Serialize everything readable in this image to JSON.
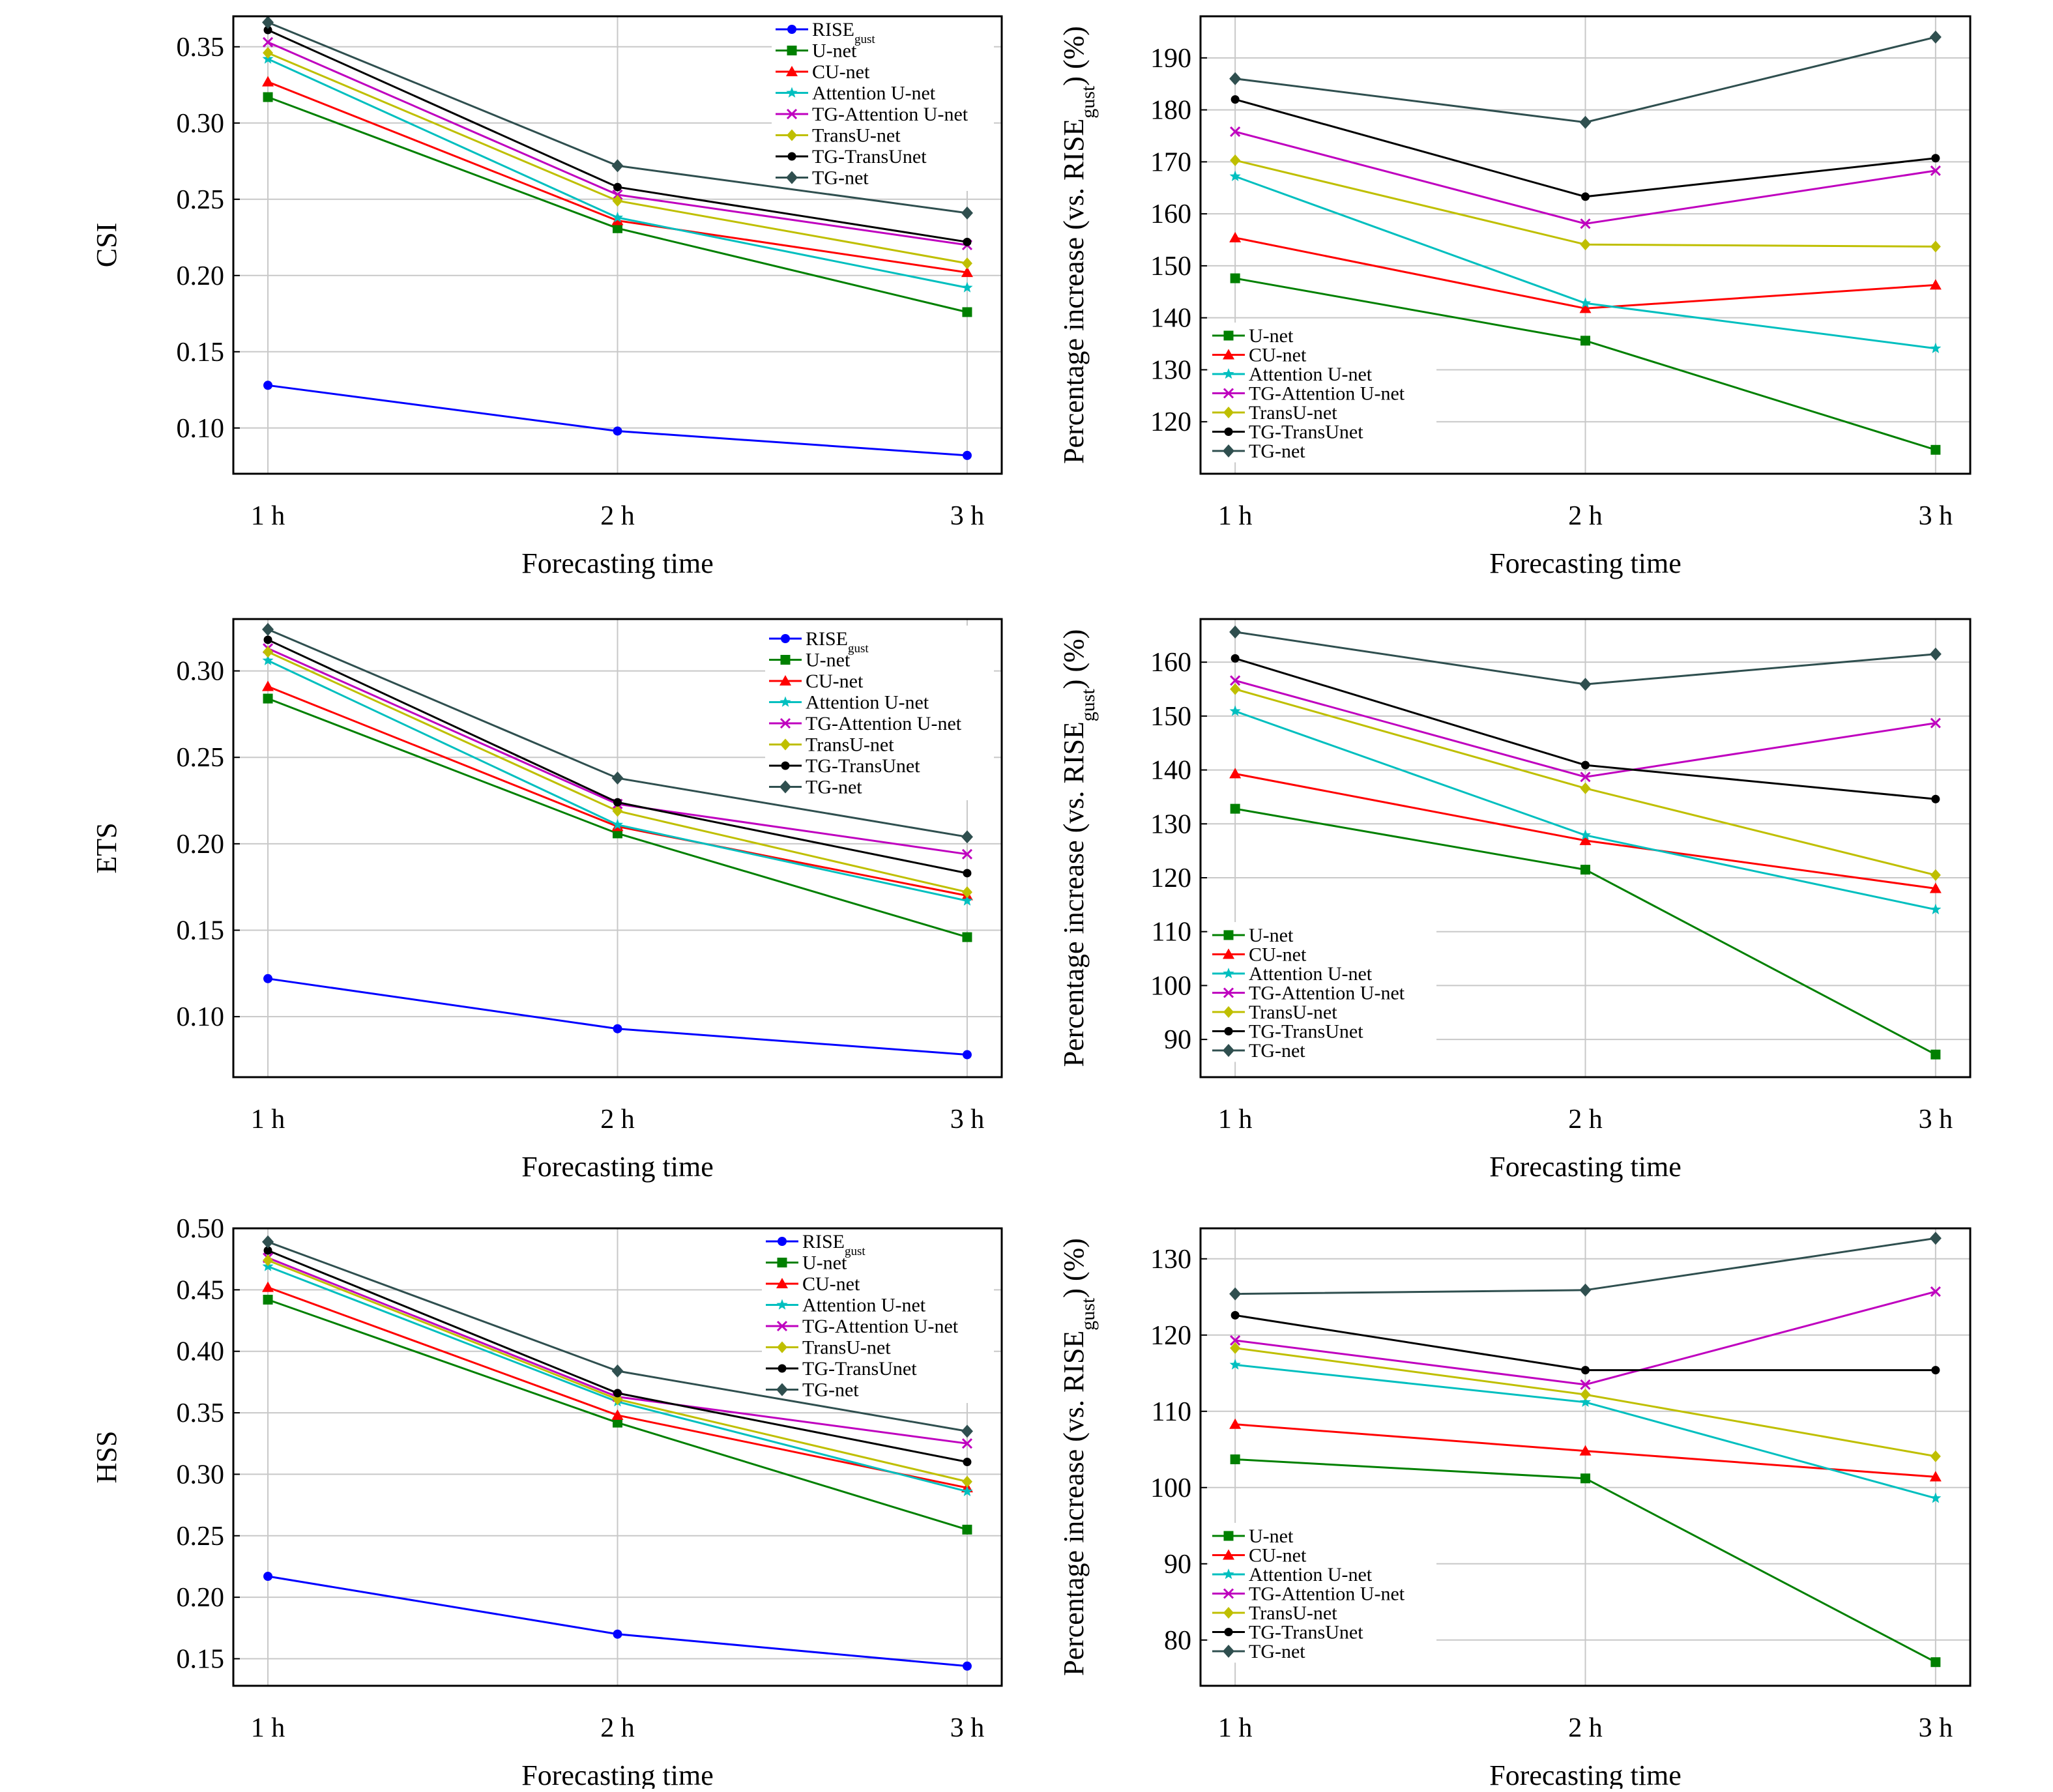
{
  "figure_title": "",
  "colors": {
    "RISE": "#0000ff",
    "U-net": "#008000",
    "CU-net": "#ff0000",
    "Attention U-net": "#00bfbf",
    "TG-Attention U-net": "#bf00bf",
    "TransU-net": "#bfbf00",
    "TG-TransUnet": "#000000",
    "TG-net": "#2f4f4f"
  },
  "chart_data": [
    {
      "id": "csi",
      "type": "line",
      "xlabel": "Forecasting time",
      "ylabel": "CSI",
      "categories": [
        "1 h",
        "2 h",
        "3 h"
      ],
      "ylim": [
        0.07,
        0.37
      ],
      "yticks": [
        "0.10",
        "0.15",
        "0.20",
        "0.25",
        "0.30",
        "0.35"
      ],
      "grid": true,
      "legend": "top-right",
      "series": [
        {
          "name": "RISE",
          "sub": "gust",
          "key": "RISE",
          "marker": "circle",
          "values": [
            0.128,
            0.098,
            0.082
          ]
        },
        {
          "name": "U-net",
          "key": "U-net",
          "marker": "square",
          "values": [
            0.317,
            0.231,
            0.176
          ]
        },
        {
          "name": "CU-net",
          "key": "CU-net",
          "marker": "triangle",
          "values": [
            0.327,
            0.236,
            0.202
          ]
        },
        {
          "name": "Attention U-net",
          "key": "Attention U-net",
          "marker": "star",
          "values": [
            0.342,
            0.238,
            0.192
          ]
        },
        {
          "name": "TG-Attention U-net",
          "key": "TG-Attention U-net",
          "marker": "x",
          "values": [
            0.353,
            0.253,
            0.22
          ]
        },
        {
          "name": "TransU-net",
          "key": "TransU-net",
          "marker": "diamond",
          "values": [
            0.346,
            0.249,
            0.208
          ]
        },
        {
          "name": "TG-TransUnet",
          "key": "TG-TransUnet",
          "marker": "pentagon",
          "values": [
            0.361,
            0.258,
            0.222
          ]
        },
        {
          "name": "TG-net",
          "key": "TG-net",
          "marker": "bigdiamond",
          "values": [
            0.366,
            0.272,
            0.241
          ]
        }
      ]
    },
    {
      "id": "csi-pct",
      "type": "line",
      "xlabel": "Forecasting time",
      "ylabel": "Percentage increase (vs. RISE",
      "ylabel_sub": "gust",
      "ylabel_end": ") (%)",
      "categories": [
        "1 h",
        "2 h",
        "3 h"
      ],
      "ylim": [
        110,
        198
      ],
      "yticks": [
        "120",
        "130",
        "140",
        "150",
        "160",
        "170",
        "180",
        "190"
      ],
      "grid": true,
      "legend": "bottom-left",
      "series": [
        {
          "name": "U-net",
          "key": "U-net",
          "marker": "square",
          "values": [
            147.6,
            135.6,
            114.6
          ]
        },
        {
          "name": "CU-net",
          "key": "CU-net",
          "marker": "triangle",
          "values": [
            155.4,
            141.8,
            146.3
          ]
        },
        {
          "name": "Attention U-net",
          "key": "Attention U-net",
          "marker": "star",
          "values": [
            167.2,
            142.8,
            134.1
          ]
        },
        {
          "name": "TG-Attention U-net",
          "key": "TG-Attention U-net",
          "marker": "x",
          "values": [
            175.8,
            158.1,
            168.3
          ]
        },
        {
          "name": "TransU-net",
          "key": "TransU-net",
          "marker": "diamond",
          "values": [
            170.3,
            154.1,
            153.7
          ]
        },
        {
          "name": "TG-TransUnet",
          "key": "TG-TransUnet",
          "marker": "pentagon",
          "values": [
            182.0,
            163.3,
            170.7
          ]
        },
        {
          "name": "TG-net",
          "key": "TG-net",
          "marker": "bigdiamond",
          "values": [
            186.0,
            177.6,
            194.0
          ]
        }
      ]
    },
    {
      "id": "ets",
      "type": "line",
      "xlabel": "Forecasting time",
      "ylabel": "ETS",
      "categories": [
        "1 h",
        "2 h",
        "3 h"
      ],
      "ylim": [
        0.065,
        0.33
      ],
      "yticks": [
        "0.10",
        "0.15",
        "0.20",
        "0.25",
        "0.30"
      ],
      "grid": true,
      "legend": "top-right",
      "series": [
        {
          "name": "RISE",
          "sub": "gust",
          "key": "RISE",
          "marker": "circle",
          "values": [
            0.122,
            0.093,
            0.078
          ]
        },
        {
          "name": "U-net",
          "key": "U-net",
          "marker": "square",
          "values": [
            0.284,
            0.206,
            0.146
          ]
        },
        {
          "name": "CU-net",
          "key": "CU-net",
          "marker": "triangle",
          "values": [
            0.291,
            0.21,
            0.17
          ]
        },
        {
          "name": "Attention U-net",
          "key": "Attention U-net",
          "marker": "star",
          "values": [
            0.306,
            0.211,
            0.167
          ]
        },
        {
          "name": "TG-Attention U-net",
          "key": "TG-Attention U-net",
          "marker": "x",
          "values": [
            0.313,
            0.223,
            0.194
          ]
        },
        {
          "name": "TransU-net",
          "key": "TransU-net",
          "marker": "diamond",
          "values": [
            0.311,
            0.219,
            0.172
          ]
        },
        {
          "name": "TG-TransUnet",
          "key": "TG-TransUnet",
          "marker": "pentagon",
          "values": [
            0.318,
            0.224,
            0.183
          ]
        },
        {
          "name": "TG-net",
          "key": "TG-net",
          "marker": "bigdiamond",
          "values": [
            0.324,
            0.238,
            0.204
          ]
        }
      ]
    },
    {
      "id": "ets-pct",
      "type": "line",
      "xlabel": "Forecasting time",
      "ylabel": "Percentage increase (vs. RISE",
      "ylabel_sub": "gust",
      "ylabel_end": ") (%)",
      "categories": [
        "1 h",
        "2 h",
        "3 h"
      ],
      "ylim": [
        83,
        168
      ],
      "yticks": [
        "90",
        "100",
        "110",
        "120",
        "130",
        "140",
        "150",
        "160"
      ],
      "grid": true,
      "legend": "bottom-left",
      "series": [
        {
          "name": "U-net",
          "key": "U-net",
          "marker": "square",
          "values": [
            132.8,
            121.5,
            87.2
          ]
        },
        {
          "name": "CU-net",
          "key": "CU-net",
          "marker": "triangle",
          "values": [
            139.3,
            126.9,
            118.0
          ]
        },
        {
          "name": "Attention U-net",
          "key": "Attention U-net",
          "marker": "star",
          "values": [
            150.9,
            127.9,
            114.1
          ]
        },
        {
          "name": "TG-Attention U-net",
          "key": "TG-Attention U-net",
          "marker": "x",
          "values": [
            156.6,
            138.7,
            148.7
          ]
        },
        {
          "name": "TransU-net",
          "key": "TransU-net",
          "marker": "diamond",
          "values": [
            155.0,
            136.6,
            120.5
          ]
        },
        {
          "name": "TG-TransUnet",
          "key": "TG-TransUnet",
          "marker": "pentagon",
          "values": [
            160.7,
            140.9,
            134.6
          ]
        },
        {
          "name": "TG-net",
          "key": "TG-net",
          "marker": "bigdiamond",
          "values": [
            165.6,
            155.9,
            161.5
          ]
        }
      ]
    },
    {
      "id": "hss",
      "type": "line",
      "xlabel": "Forecasting time",
      "ylabel": "HSS",
      "categories": [
        "1 h",
        "2 h",
        "3 h"
      ],
      "ylim": [
        0.128,
        0.5
      ],
      "yticks": [
        "0.15",
        "0.20",
        "0.25",
        "0.30",
        "0.35",
        "0.40",
        "0.45",
        "0.50"
      ],
      "grid": true,
      "legend": "top-right",
      "series": [
        {
          "name": "RISE",
          "sub": "gust",
          "key": "RISE",
          "marker": "circle",
          "values": [
            0.217,
            0.17,
            0.144
          ]
        },
        {
          "name": "U-net",
          "key": "U-net",
          "marker": "square",
          "values": [
            0.442,
            0.342,
            0.255
          ]
        },
        {
          "name": "CU-net",
          "key": "CU-net",
          "marker": "triangle",
          "values": [
            0.452,
            0.348,
            0.289
          ]
        },
        {
          "name": "Attention U-net",
          "key": "Attention U-net",
          "marker": "star",
          "values": [
            0.469,
            0.359,
            0.286
          ]
        },
        {
          "name": "TG-Attention U-net",
          "key": "TG-Attention U-net",
          "marker": "x",
          "values": [
            0.476,
            0.363,
            0.325
          ]
        },
        {
          "name": "TransU-net",
          "key": "TransU-net",
          "marker": "diamond",
          "values": [
            0.474,
            0.361,
            0.294
          ]
        },
        {
          "name": "TG-TransUnet",
          "key": "TG-TransUnet",
          "marker": "pentagon",
          "values": [
            0.482,
            0.366,
            0.31
          ]
        },
        {
          "name": "TG-net",
          "key": "TG-net",
          "marker": "bigdiamond",
          "values": [
            0.489,
            0.384,
            0.335
          ]
        }
      ]
    },
    {
      "id": "hss-pct",
      "type": "line",
      "xlabel": "Forecasting time",
      "ylabel": "Percentage increase (vs. RISE",
      "ylabel_sub": "gust",
      "ylabel_end": ") (%)",
      "categories": [
        "1 h",
        "2 h",
        "3 h"
      ],
      "ylim": [
        74,
        134
      ],
      "yticks": [
        "80",
        "90",
        "100",
        "110",
        "120",
        "130"
      ],
      "grid": true,
      "legend": "bottom-left",
      "series": [
        {
          "name": "U-net",
          "key": "U-net",
          "marker": "square",
          "values": [
            103.7,
            101.2,
            77.1
          ]
        },
        {
          "name": "CU-net",
          "key": "CU-net",
          "marker": "triangle",
          "values": [
            108.3,
            104.8,
            101.4
          ]
        },
        {
          "name": "Attention U-net",
          "key": "Attention U-net",
          "marker": "star",
          "values": [
            116.1,
            111.2,
            98.6
          ]
        },
        {
          "name": "TG-Attention U-net",
          "key": "TG-Attention U-net",
          "marker": "x",
          "values": [
            119.3,
            113.5,
            125.7
          ]
        },
        {
          "name": "TransU-net",
          "key": "TransU-net",
          "marker": "diamond",
          "values": [
            118.3,
            112.2,
            104.1
          ]
        },
        {
          "name": "TG-TransUnet",
          "key": "TG-TransUnet",
          "marker": "pentagon",
          "values": [
            122.6,
            115.4,
            115.4
          ]
        },
        {
          "name": "TG-net",
          "key": "TG-net",
          "marker": "bigdiamond",
          "values": [
            125.4,
            125.9,
            132.7
          ]
        }
      ]
    }
  ]
}
